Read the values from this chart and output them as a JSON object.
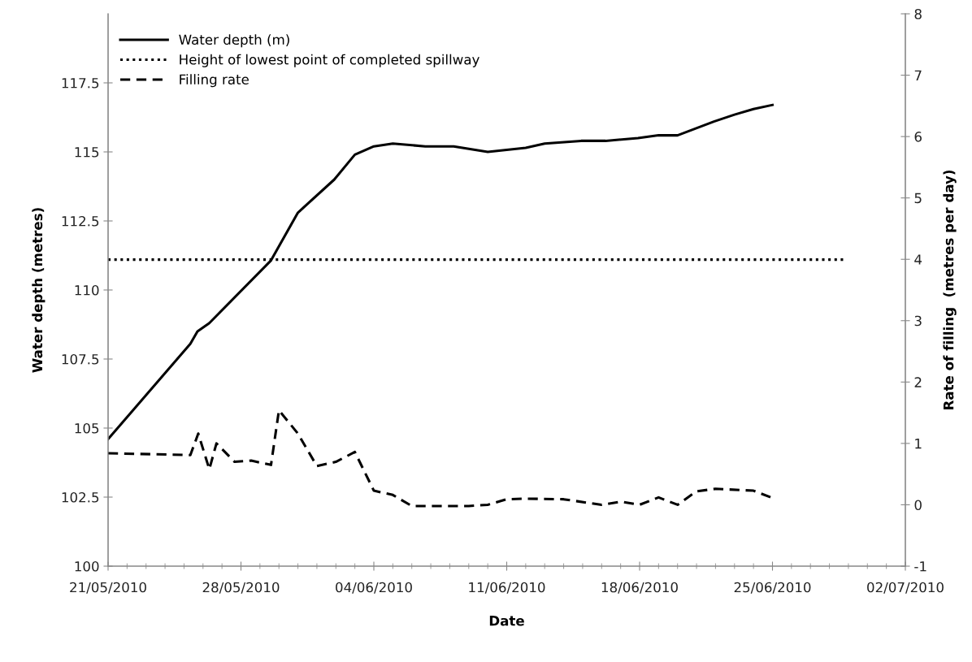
{
  "chart_data": {
    "type": "line",
    "xlabel": "Date",
    "ylabel": "Water depth (metres)",
    "y2label": "Rate of filling  (metres per day)",
    "xlim": [
      "2010-05-21",
      "2010-07-02"
    ],
    "xticks": [
      {
        "value": "2010-05-21",
        "label": "21/05/2010"
      },
      {
        "value": "2010-05-28",
        "label": "28/05/2010"
      },
      {
        "value": "2010-06-04",
        "label": "04/06/2010"
      },
      {
        "value": "2010-06-11",
        "label": "11/06/2010"
      },
      {
        "value": "2010-06-18",
        "label": "18/06/2010"
      },
      {
        "value": "2010-06-25",
        "label": "25/06/2010"
      },
      {
        "value": "2010-07-02",
        "label": "02/07/2010"
      }
    ],
    "ylim": [
      100,
      120
    ],
    "yticks": [
      100,
      102.5,
      105,
      107.5,
      110,
      112.5,
      115,
      117.5
    ],
    "y2lim": [
      -1,
      8
    ],
    "y2ticks": [
      -1,
      0,
      1,
      2,
      3,
      4,
      5,
      6,
      7,
      8
    ],
    "grid": false,
    "legend": "top left",
    "marker": "none",
    "series": [
      {
        "name": "Water depth (m)",
        "color": "#000000",
        "line_style": "solid",
        "x": [
          "2010-05-21",
          "2010-05-25T08:00",
          "2010-05-25T17:00",
          "2010-05-26T08:00",
          "2010-05-29T14:00",
          "2010-05-31",
          "2010-06-01T22:00",
          "2010-06-03",
          "2010-06-04",
          "2010-06-05",
          "2010-06-06T17:00",
          "2010-06-08T05:00",
          "2010-06-10",
          "2010-06-12",
          "2010-06-13",
          "2010-06-14T22:00",
          "2010-06-16T05:00",
          "2010-06-17T22:00",
          "2010-06-19",
          "2010-06-20",
          "2010-06-21T22:00",
          "2010-06-23",
          "2010-06-24",
          "2010-06-25"
        ],
        "values": [
          104.6,
          108.05,
          108.5,
          108.8,
          111.07,
          112.8,
          114.0,
          114.9,
          115.2,
          115.3,
          115.2,
          115.2,
          115.0,
          115.15,
          115.3,
          115.4,
          115.4,
          115.5,
          115.6,
          115.6,
          116.1,
          116.35,
          116.55,
          116.7
        ]
      },
      {
        "name": "Height of lowest point of completed spillway",
        "color": "#000000",
        "line_style": "dotted",
        "x": [
          "2010-05-21",
          "2010-06-28T18:00"
        ],
        "values": [
          111.1,
          111.1
        ]
      },
      {
        "name": "Filling rate",
        "color": "#000000",
        "line_style": "dashed",
        "axis": "y2",
        "x": [
          "2010-05-21",
          "2010-05-25T08:00",
          "2010-05-25T18:00",
          "2010-05-26T08:00",
          "2010-05-26T17:00",
          "2010-05-27T16:00",
          "2010-05-28T13:00",
          "2010-05-29T14:00",
          "2010-05-30",
          "2010-05-31",
          "2010-06-01",
          "2010-06-02",
          "2010-06-03",
          "2010-06-04",
          "2010-06-05",
          "2010-06-06",
          "2010-06-09",
          "2010-06-10",
          "2010-06-11",
          "2010-06-12",
          "2010-06-14",
          "2010-06-16",
          "2010-06-17",
          "2010-06-18",
          "2010-06-19",
          "2010-06-20",
          "2010-06-21",
          "2010-06-22",
          "2010-06-24",
          "2010-06-25"
        ],
        "values": [
          0.84,
          0.81,
          1.16,
          0.58,
          1.0,
          0.7,
          0.72,
          0.65,
          1.54,
          1.16,
          0.63,
          0.7,
          0.86,
          0.23,
          0.16,
          -0.02,
          -0.02,
          0.0,
          0.09,
          0.1,
          0.09,
          0.0,
          0.05,
          0.0,
          0.12,
          0.0,
          0.22,
          0.26,
          0.23,
          0.11
        ]
      }
    ]
  }
}
